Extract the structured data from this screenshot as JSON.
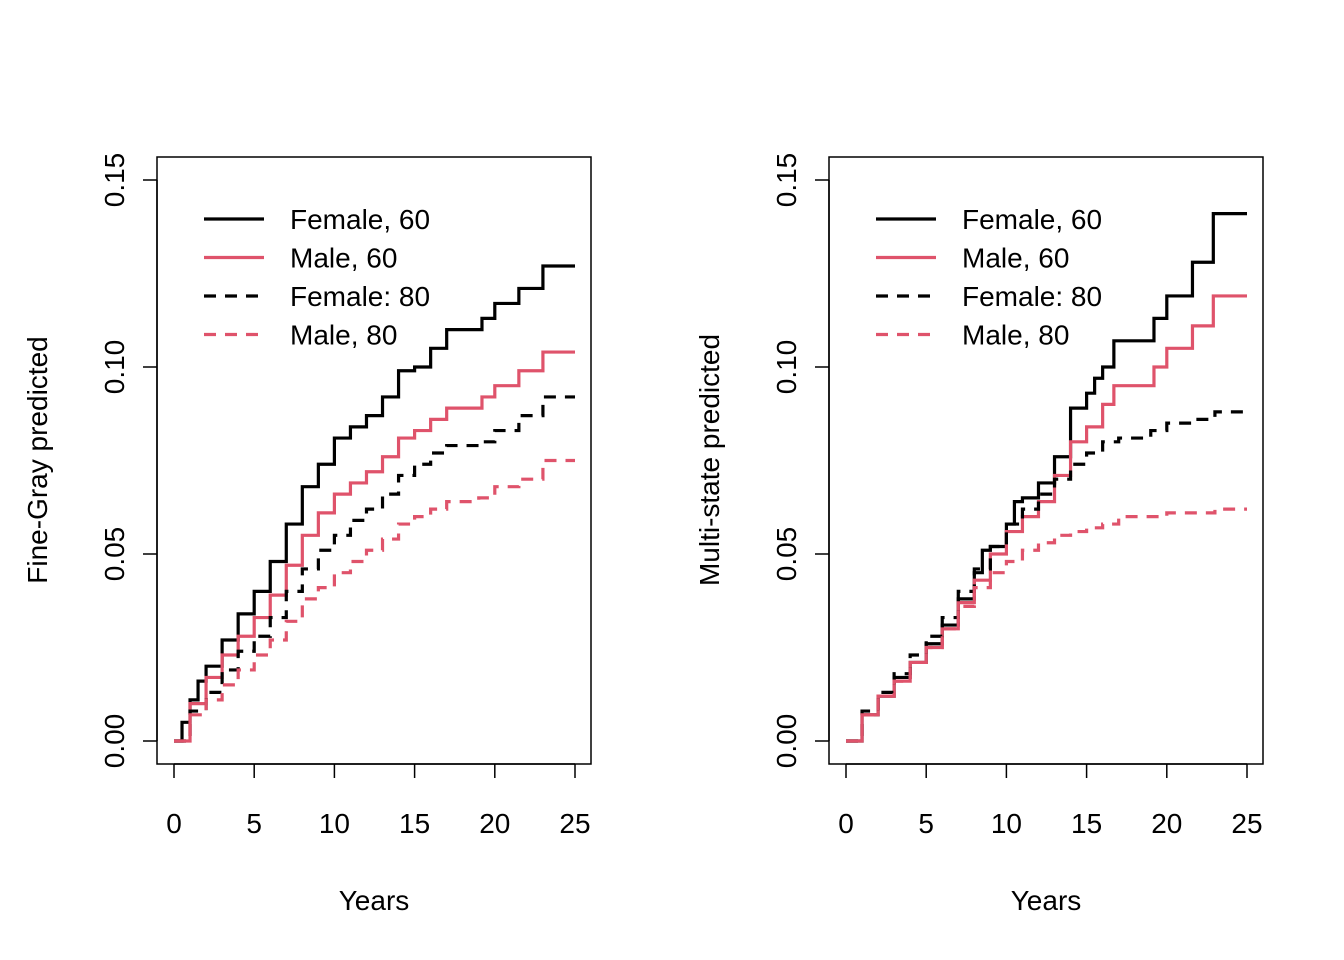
{
  "colors": {
    "black": "#000000",
    "red": "#DF536B"
  },
  "chart_data": [
    {
      "type": "line",
      "xlabel": "Years",
      "ylabel": "Fine-Gray predicted",
      "xlim": [
        0,
        25
      ],
      "ylim": [
        0,
        0.15
      ],
      "xticks": [
        "0",
        "5",
        "10",
        "15",
        "20",
        "25"
      ],
      "yticks": [
        "0.00",
        "0.05",
        "0.10",
        "0.15"
      ],
      "grid": false,
      "legend_position": "top-left",
      "series": [
        {
          "name": "Female, 60",
          "color": "#000000",
          "linestyle": "solid",
          "step": true,
          "points": [
            [
              0,
              0
            ],
            [
              0.5,
              0.005
            ],
            [
              1,
              0.011
            ],
            [
              1.5,
              0.016
            ],
            [
              2,
              0.02
            ],
            [
              3,
              0.027
            ],
            [
              4,
              0.034
            ],
            [
              5,
              0.04
            ],
            [
              6,
              0.048
            ],
            [
              7,
              0.058
            ],
            [
              8,
              0.068
            ],
            [
              9,
              0.074
            ],
            [
              10,
              0.081
            ],
            [
              11,
              0.084
            ],
            [
              12,
              0.087
            ],
            [
              13,
              0.092
            ],
            [
              14,
              0.099
            ],
            [
              15,
              0.1
            ],
            [
              16,
              0.105
            ],
            [
              17,
              0.11
            ],
            [
              19,
              0.11
            ],
            [
              19.2,
              0.113
            ],
            [
              20,
              0.117
            ],
            [
              21.5,
              0.121
            ],
            [
              23,
              0.127
            ],
            [
              25,
              0.127
            ]
          ]
        },
        {
          "name": "Male, 60",
          "color": "#DF536B",
          "linestyle": "solid",
          "step": true,
          "points": [
            [
              0,
              0
            ],
            [
              1,
              0.01
            ],
            [
              2,
              0.017
            ],
            [
              3,
              0.023
            ],
            [
              4,
              0.028
            ],
            [
              5,
              0.033
            ],
            [
              6,
              0.039
            ],
            [
              7,
              0.047
            ],
            [
              8,
              0.055
            ],
            [
              9,
              0.061
            ],
            [
              10,
              0.066
            ],
            [
              11,
              0.069
            ],
            [
              12,
              0.072
            ],
            [
              13,
              0.076
            ],
            [
              14,
              0.081
            ],
            [
              15,
              0.083
            ],
            [
              16,
              0.086
            ],
            [
              17,
              0.089
            ],
            [
              19,
              0.089
            ],
            [
              19.2,
              0.092
            ],
            [
              20,
              0.095
            ],
            [
              21.5,
              0.099
            ],
            [
              23,
              0.104
            ],
            [
              25,
              0.104
            ]
          ]
        },
        {
          "name": "Female: 80",
          "color": "#000000",
          "linestyle": "dashed",
          "step": true,
          "points": [
            [
              0,
              0
            ],
            [
              1,
              0.008
            ],
            [
              2,
              0.013
            ],
            [
              3,
              0.019
            ],
            [
              4,
              0.024
            ],
            [
              5,
              0.028
            ],
            [
              6,
              0.033
            ],
            [
              7,
              0.04
            ],
            [
              8,
              0.046
            ],
            [
              9,
              0.051
            ],
            [
              10,
              0.055
            ],
            [
              11,
              0.059
            ],
            [
              12,
              0.062
            ],
            [
              13,
              0.066
            ],
            [
              14,
              0.071
            ],
            [
              15,
              0.074
            ],
            [
              16,
              0.077
            ],
            [
              17,
              0.079
            ],
            [
              19,
              0.08
            ],
            [
              20,
              0.083
            ],
            [
              21.5,
              0.087
            ],
            [
              23,
              0.092
            ],
            [
              25,
              0.092
            ]
          ]
        },
        {
          "name": "Male, 80",
          "color": "#DF536B",
          "linestyle": "dashed",
          "step": true,
          "points": [
            [
              0,
              0
            ],
            [
              1,
              0.007
            ],
            [
              2,
              0.011
            ],
            [
              3,
              0.015
            ],
            [
              4,
              0.019
            ],
            [
              5,
              0.023
            ],
            [
              6,
              0.027
            ],
            [
              7,
              0.032
            ],
            [
              8,
              0.038
            ],
            [
              9,
              0.041
            ],
            [
              10,
              0.045
            ],
            [
              11,
              0.048
            ],
            [
              12,
              0.051
            ],
            [
              13,
              0.054
            ],
            [
              14,
              0.058
            ],
            [
              15,
              0.06
            ],
            [
              16,
              0.062
            ],
            [
              17,
              0.064
            ],
            [
              19,
              0.065
            ],
            [
              20,
              0.068
            ],
            [
              21.5,
              0.07
            ],
            [
              23,
              0.075
            ],
            [
              25,
              0.075
            ]
          ]
        }
      ]
    },
    {
      "type": "line",
      "xlabel": "Years",
      "ylabel": "Multi-state predicted",
      "xlim": [
        0,
        25
      ],
      "ylim": [
        0,
        0.15
      ],
      "xticks": [
        "0",
        "5",
        "10",
        "15",
        "20",
        "25"
      ],
      "yticks": [
        "0.00",
        "0.05",
        "0.10",
        "0.15"
      ],
      "grid": false,
      "legend_position": "top-left",
      "series": [
        {
          "name": "Female, 60",
          "color": "#000000",
          "linestyle": "solid",
          "step": true,
          "points": [
            [
              0,
              0
            ],
            [
              1,
              0.007
            ],
            [
              2,
              0.012
            ],
            [
              3,
              0.017
            ],
            [
              4,
              0.021
            ],
            [
              5,
              0.026
            ],
            [
              6,
              0.031
            ],
            [
              7,
              0.038
            ],
            [
              8,
              0.045
            ],
            [
              8.5,
              0.051
            ],
            [
              9,
              0.052
            ],
            [
              10,
              0.058
            ],
            [
              10.5,
              0.064
            ],
            [
              11,
              0.065
            ],
            [
              12,
              0.069
            ],
            [
              13,
              0.076
            ],
            [
              14,
              0.089
            ],
            [
              15,
              0.093
            ],
            [
              15.5,
              0.097
            ],
            [
              16,
              0.1
            ],
            [
              16.7,
              0.107
            ],
            [
              19,
              0.107
            ],
            [
              19.2,
              0.113
            ],
            [
              20,
              0.119
            ],
            [
              21.6,
              0.128
            ],
            [
              22.9,
              0.141
            ],
            [
              25,
              0.141
            ]
          ]
        },
        {
          "name": "Male, 60",
          "color": "#DF536B",
          "linestyle": "solid",
          "step": true,
          "points": [
            [
              0,
              0
            ],
            [
              1,
              0.007
            ],
            [
              2,
              0.012
            ],
            [
              3,
              0.016
            ],
            [
              4,
              0.021
            ],
            [
              5,
              0.025
            ],
            [
              6,
              0.03
            ],
            [
              7,
              0.037
            ],
            [
              8,
              0.043
            ],
            [
              9,
              0.05
            ],
            [
              10,
              0.056
            ],
            [
              11,
              0.06
            ],
            [
              12,
              0.064
            ],
            [
              13,
              0.071
            ],
            [
              14,
              0.08
            ],
            [
              15,
              0.084
            ],
            [
              16,
              0.09
            ],
            [
              16.7,
              0.095
            ],
            [
              19,
              0.095
            ],
            [
              19.2,
              0.1
            ],
            [
              20,
              0.105
            ],
            [
              21.6,
              0.111
            ],
            [
              22.9,
              0.119
            ],
            [
              25,
              0.119
            ]
          ]
        },
        {
          "name": "Female: 80",
          "color": "#000000",
          "linestyle": "dashed",
          "step": true,
          "points": [
            [
              0,
              0
            ],
            [
              1,
              0.008
            ],
            [
              2,
              0.013
            ],
            [
              3,
              0.018
            ],
            [
              4,
              0.023
            ],
            [
              5,
              0.028
            ],
            [
              6,
              0.033
            ],
            [
              7,
              0.04
            ],
            [
              8,
              0.046
            ],
            [
              9,
              0.052
            ],
            [
              10,
              0.058
            ],
            [
              11,
              0.062
            ],
            [
              12,
              0.066
            ],
            [
              13,
              0.07
            ],
            [
              14,
              0.074
            ],
            [
              15,
              0.077
            ],
            [
              16,
              0.08
            ],
            [
              17,
              0.081
            ],
            [
              19,
              0.083
            ],
            [
              20,
              0.085
            ],
            [
              21.6,
              0.086
            ],
            [
              23,
              0.088
            ],
            [
              25,
              0.088
            ]
          ]
        },
        {
          "name": "Male, 80",
          "color": "#DF536B",
          "linestyle": "dashed",
          "step": true,
          "points": [
            [
              0,
              0
            ],
            [
              1,
              0.007
            ],
            [
              2,
              0.012
            ],
            [
              3,
              0.016
            ],
            [
              4,
              0.021
            ],
            [
              5,
              0.025
            ],
            [
              6,
              0.03
            ],
            [
              7,
              0.036
            ],
            [
              8,
              0.041
            ],
            [
              9,
              0.045
            ],
            [
              10,
              0.048
            ],
            [
              11,
              0.051
            ],
            [
              12,
              0.053
            ],
            [
              13,
              0.055
            ],
            [
              14,
              0.056
            ],
            [
              15,
              0.057
            ],
            [
              16,
              0.058
            ],
            [
              17,
              0.06
            ],
            [
              19,
              0.06
            ],
            [
              20,
              0.061
            ],
            [
              23,
              0.062
            ],
            [
              25,
              0.062
            ]
          ]
        }
      ]
    }
  ]
}
